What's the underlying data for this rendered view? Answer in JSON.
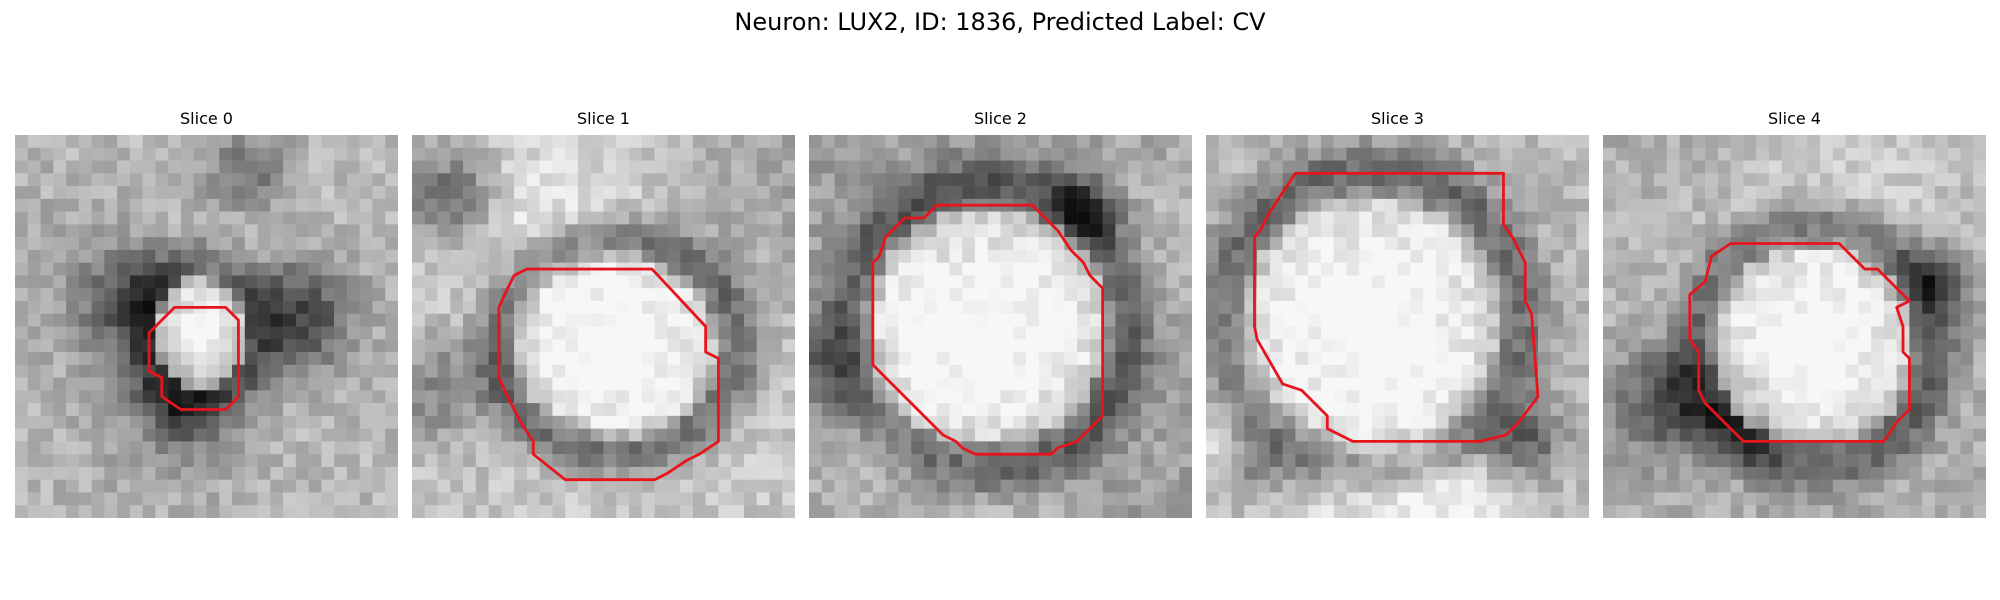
{
  "figure": {
    "title": "Neuron: LUX2, ID: 1836, Predicted Label: CV"
  },
  "slices": [
    {
      "label": "Slice 0"
    },
    {
      "label": "Slice 1"
    },
    {
      "label": "Slice 2"
    },
    {
      "label": "Slice 3"
    },
    {
      "label": "Slice 4"
    }
  ],
  "style": {
    "contour_color": "#e8141c",
    "background": "#ffffff",
    "colormap": "grayscale"
  }
}
